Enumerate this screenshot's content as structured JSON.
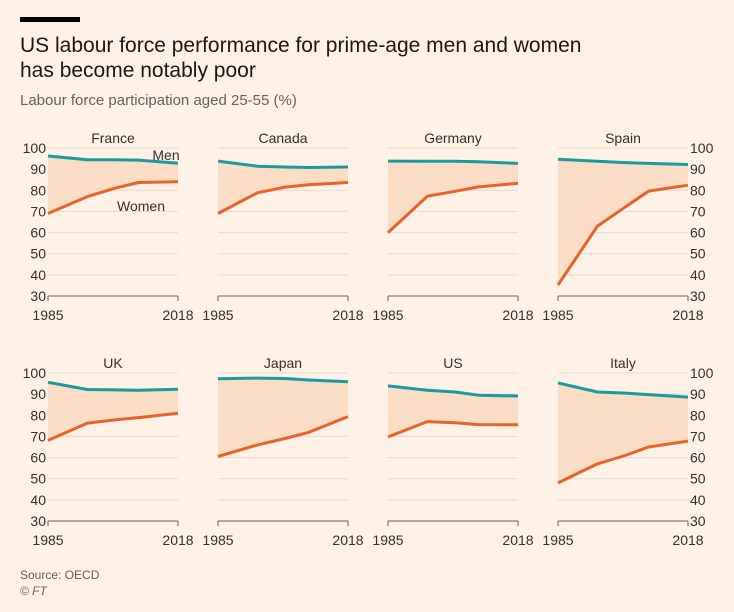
{
  "header": {
    "title_line1": "US labour force performance for prime-age men and women",
    "title_line2": "has become notably poor",
    "subtitle": "Labour force participation aged 25-55 (%)"
  },
  "footer": {
    "source": "Source: OECD",
    "credit": "© FT"
  },
  "colors": {
    "background": "#fff1e5",
    "men": "#1a9a9c",
    "women": "#e8632b",
    "gap_fill": "#fbdcc4",
    "gridline": "#e6d9ce",
    "axis_line": "#66605c",
    "text": "#33302e"
  },
  "chart_data": {
    "type": "line",
    "y_ticks": [
      100,
      90,
      80,
      70,
      60,
      50,
      40,
      30
    ],
    "x_tick_labels": [
      "1985",
      "2018"
    ],
    "ylim": [
      30,
      100
    ],
    "xlim": [
      1985,
      2018
    ],
    "grid": true,
    "series_labels": {
      "men": "Men",
      "women": "Women"
    },
    "panels": [
      {
        "name": "France",
        "men": [
          [
            1985,
            96.2
          ],
          [
            1995,
            94.4
          ],
          [
            2002,
            94.4
          ],
          [
            2008,
            94.3
          ],
          [
            2018,
            92.8
          ]
        ],
        "women": [
          [
            1985,
            69.0
          ],
          [
            1995,
            77.0
          ],
          [
            2002,
            81.0
          ],
          [
            2008,
            83.7
          ],
          [
            2018,
            84.0
          ]
        ]
      },
      {
        "name": "Canada",
        "men": [
          [
            1985,
            93.8
          ],
          [
            1995,
            91.4
          ],
          [
            2002,
            91.0
          ],
          [
            2008,
            90.8
          ],
          [
            2018,
            91.0
          ]
        ],
        "women": [
          [
            1985,
            69.0
          ],
          [
            1995,
            78.8
          ],
          [
            2002,
            81.5
          ],
          [
            2008,
            82.6
          ],
          [
            2018,
            83.7
          ]
        ]
      },
      {
        "name": "Germany",
        "men": [
          [
            1985,
            93.8
          ],
          [
            1995,
            93.7
          ],
          [
            2002,
            93.7
          ],
          [
            2008,
            93.5
          ],
          [
            2018,
            92.7
          ]
        ],
        "women": [
          [
            1985,
            60.0
          ],
          [
            1995,
            77.2
          ],
          [
            2002,
            79.5
          ],
          [
            2008,
            81.6
          ],
          [
            2018,
            83.3
          ]
        ]
      },
      {
        "name": "Spain",
        "men": [
          [
            1985,
            94.7
          ],
          [
            1995,
            93.7
          ],
          [
            2002,
            93.1
          ],
          [
            2008,
            92.7
          ],
          [
            2018,
            92.2
          ]
        ],
        "women": [
          [
            1985,
            35.2
          ],
          [
            1995,
            63.0
          ],
          [
            2002,
            72.0
          ],
          [
            2008,
            79.6
          ],
          [
            2018,
            82.4
          ]
        ]
      },
      {
        "name": "UK",
        "men": [
          [
            1985,
            95.6
          ],
          [
            1995,
            92.2
          ],
          [
            2002,
            92.0
          ],
          [
            2008,
            91.8
          ],
          [
            2018,
            92.3
          ]
        ],
        "women": [
          [
            1985,
            68.1
          ],
          [
            1995,
            76.3
          ],
          [
            2002,
            77.8
          ],
          [
            2008,
            78.9
          ],
          [
            2018,
            81.0
          ]
        ]
      },
      {
        "name": "Japan",
        "men": [
          [
            1985,
            97.3
          ],
          [
            1995,
            97.6
          ],
          [
            2002,
            97.4
          ],
          [
            2008,
            96.7
          ],
          [
            2018,
            95.9
          ]
        ],
        "women": [
          [
            1985,
            60.5
          ],
          [
            1995,
            66.0
          ],
          [
            2002,
            69.0
          ],
          [
            2008,
            71.9
          ],
          [
            2018,
            79.4
          ]
        ]
      },
      {
        "name": "US",
        "men": [
          [
            1985,
            93.9
          ],
          [
            1995,
            91.8
          ],
          [
            2002,
            91.0
          ],
          [
            2008,
            89.5
          ],
          [
            2018,
            89.1
          ]
        ],
        "women": [
          [
            1985,
            69.8
          ],
          [
            1995,
            77.0
          ],
          [
            2002,
            76.5
          ],
          [
            2008,
            75.6
          ],
          [
            2018,
            75.5
          ]
        ]
      },
      {
        "name": "Italy",
        "men": [
          [
            1985,
            95.3
          ],
          [
            1995,
            91.0
          ],
          [
            2002,
            90.5
          ],
          [
            2008,
            89.8
          ],
          [
            2018,
            88.6
          ]
        ],
        "women": [
          [
            1985,
            48.0
          ],
          [
            1995,
            57.0
          ],
          [
            2002,
            61.0
          ],
          [
            2008,
            65.0
          ],
          [
            2018,
            67.8
          ]
        ]
      }
    ]
  }
}
